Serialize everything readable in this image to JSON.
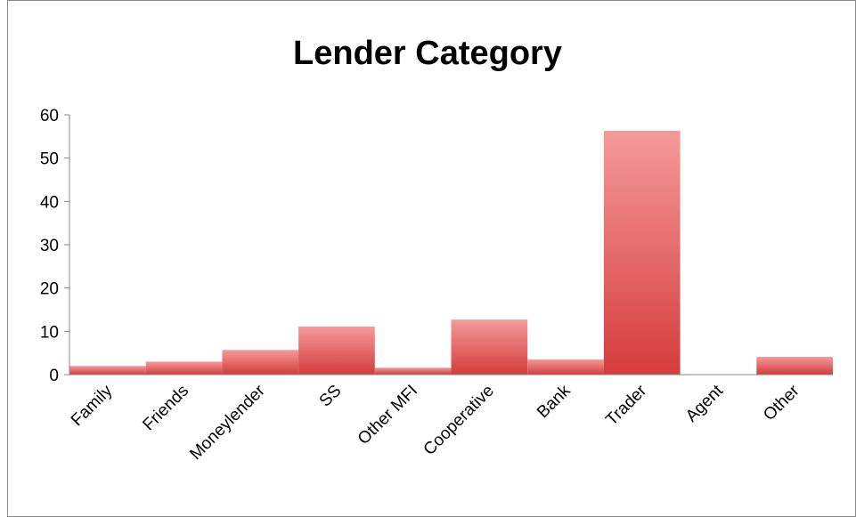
{
  "chart_data": {
    "type": "bar",
    "title": "Lender Category",
    "categories": [
      "Family",
      "Friends",
      "Moneylender",
      "SS",
      "Other MFI",
      "Cooperative",
      "Bank",
      "Trader",
      "Agent",
      "Other"
    ],
    "values": [
      2,
      3,
      5.7,
      11.1,
      1.6,
      12.7,
      3.5,
      56.3,
      0,
      4.1
    ],
    "color": "#dd4b4b",
    "ylim": [
      0,
      60
    ],
    "yticks": [
      0,
      10,
      20,
      30,
      40,
      50,
      60
    ],
    "grid": false
  }
}
